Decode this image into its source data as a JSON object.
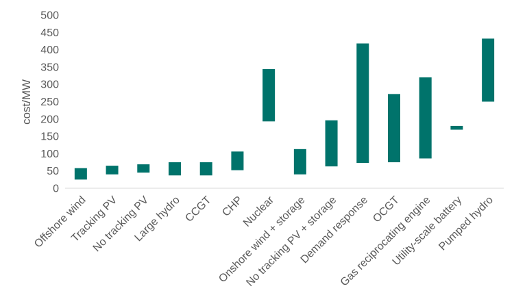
{
  "chart_data": {
    "type": "bar",
    "subtype": "floating-range",
    "title": "",
    "xlabel": "",
    "ylabel": "cost/MW",
    "ylim": [
      0,
      500
    ],
    "yticks": [
      0,
      50,
      100,
      150,
      200,
      250,
      300,
      350,
      400,
      450,
      500
    ],
    "grid": false,
    "legend": "none",
    "bar_color": "#00736b",
    "categories": [
      "Offshore wind",
      "Tracking PV",
      "No tracking PV",
      "Large hydro",
      "CCGT",
      "CHP",
      "Nuclear",
      "Onshore wind + storage",
      "No tracking PV + storage",
      "Demand response",
      "OCGT",
      "Gas reciprocating engine",
      "Utility-scale battery",
      "Pumped hydro"
    ],
    "series": [
      {
        "low": [
          25,
          40,
          45,
          37,
          37,
          52,
          193,
          40,
          63,
          73,
          75,
          86,
          169,
          250
        ]
      },
      {
        "high": [
          58,
          65,
          69,
          75,
          75,
          106,
          344,
          113,
          196,
          418,
          272,
          320,
          180,
          432
        ]
      }
    ]
  }
}
